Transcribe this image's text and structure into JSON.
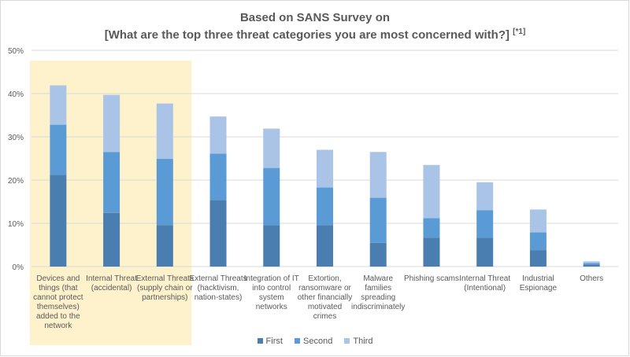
{
  "title_line1": "Based on SANS Survey on",
  "title_line2": "[What are the top three threat categories you are most concerned with?]",
  "title_note": "[*1]",
  "colors": {
    "first": "#4a7eb0",
    "second": "#5b9bd5",
    "third": "#a9c4e6",
    "highlight": "#fdf2cc",
    "grid": "#d9d9d9",
    "text": "#595959"
  },
  "legend": [
    "First",
    "Second",
    "Third"
  ],
  "chart_data": {
    "type": "bar",
    "stacked": true,
    "categories": [
      [
        "Devices and",
        "things (that",
        "cannot protect",
        "themselves)",
        "added to the",
        "network"
      ],
      [
        "Internal Threat",
        "(accidental)"
      ],
      [
        "External Threats",
        "(supply chain or",
        "partnerships)"
      ],
      [
        "External Threats",
        "(hacktivism,",
        "nation-states)"
      ],
      [
        "Integration of IT",
        "into control",
        "system",
        "networks"
      ],
      [
        "Extortion,",
        "ransomware or",
        "other financially",
        "motivated",
        "crimes"
      ],
      [
        "Malware",
        "families",
        "spreading",
        "indiscriminately"
      ],
      [
        "Phishing scams"
      ],
      [
        "Internal Threat",
        "(Intentional)"
      ],
      [
        "Industrial",
        "Espionage"
      ],
      [
        "Others"
      ]
    ],
    "series": [
      {
        "name": "First",
        "values": [
          21.2,
          12.4,
          9.6,
          15.4,
          9.6,
          9.6,
          5.5,
          6.7,
          6.7,
          3.8,
          0.5
        ]
      },
      {
        "name": "Second",
        "values": [
          11.6,
          14.1,
          15.3,
          10.7,
          13.2,
          8.7,
          10.4,
          4.5,
          6.3,
          4.1,
          0.3
        ]
      },
      {
        "name": "Third",
        "values": [
          9.1,
          13.2,
          12.8,
          8.6,
          9.1,
          8.7,
          10.6,
          12.3,
          6.5,
          5.3,
          0.4
        ]
      }
    ],
    "ylim": [
      0,
      50
    ],
    "yticks": [
      "0%",
      "10%",
      "20%",
      "30%",
      "40%",
      "50%"
    ],
    "highlighted_categories": [
      0,
      1,
      2
    ],
    "legend_position": "bottom",
    "grid": true
  }
}
